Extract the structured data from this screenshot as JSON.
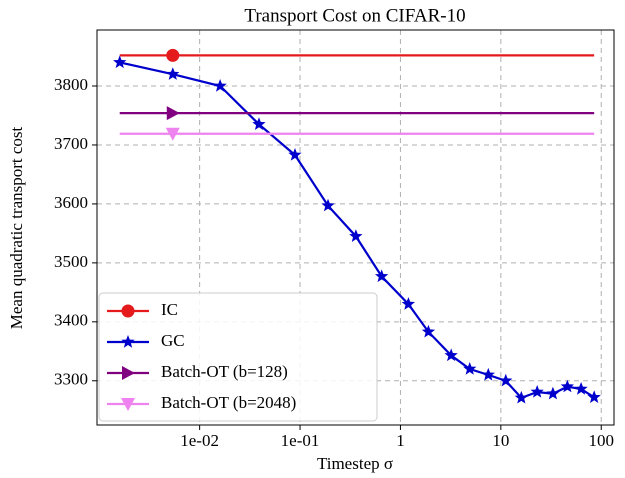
{
  "chart_data": {
    "type": "line",
    "title": "Transport Cost on CIFAR-10",
    "x_label": "Timestep σ",
    "y_label": "Mean quadratic transport cost",
    "xscale": "log",
    "grid": true,
    "legend": "lower left",
    "xlim": [
      0.00095,
      134
    ],
    "ylim": [
      3225,
      3895
    ],
    "xticks": [
      {
        "value": 0.01,
        "label": "1e-02"
      },
      {
        "value": 0.1,
        "label": "1e-01"
      },
      1,
      10,
      100
    ],
    "yticks": [
      3300,
      3400,
      3500,
      3600,
      3700,
      3800
    ],
    "series": [
      {
        "name": "IC",
        "color": "#e41a1c",
        "marker": "circle",
        "markevery": [
          1
        ],
        "x": [
          0.0016,
          0.0054,
          85
        ],
        "values": [
          3852,
          3852,
          3852
        ]
      },
      {
        "name": "GC",
        "color": "#0000cc",
        "marker": "star",
        "x": [
          0.0016,
          0.0054,
          0.016,
          0.039,
          0.089,
          0.19,
          0.36,
          0.65,
          1.2,
          1.9,
          3.2,
          4.9,
          7.5,
          11.2,
          16,
          23,
          33,
          46,
          63,
          85
        ],
        "values": [
          3840,
          3820,
          3800,
          3735,
          3683,
          3597,
          3545,
          3477,
          3430,
          3383,
          3343,
          3320,
          3310,
          3300,
          3271,
          3281,
          3278,
          3290,
          3286,
          3272
        ]
      },
      {
        "name": "Batch-OT (b=128)",
        "color": "#800080",
        "marker": "triangle-right",
        "markevery": [
          1
        ],
        "x": [
          0.0016,
          0.0054,
          85
        ],
        "values": [
          3754,
          3754,
          3754
        ]
      },
      {
        "name": "Batch-OT (b=2048)",
        "color": "#ee82ee",
        "marker": "triangle-down",
        "markevery": [
          1
        ],
        "x": [
          0.0016,
          0.0054,
          85
        ],
        "values": [
          3719,
          3719,
          3719
        ]
      }
    ]
  }
}
